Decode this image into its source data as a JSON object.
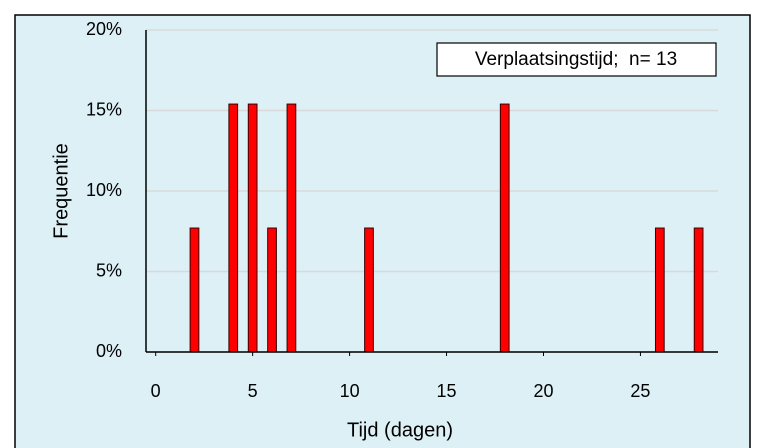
{
  "chart_data": {
    "type": "bar",
    "annotation": "Verplaatsingstijd;  n= 13",
    "x_label": "Tijd (dagen)",
    "y_label": "Frequentie",
    "x": [
      2,
      4,
      5,
      6,
      7,
      11,
      18,
      26,
      28
    ],
    "values": [
      7.7,
      15.4,
      15.4,
      7.7,
      15.4,
      7.7,
      15.4,
      7.7,
      7.7
    ],
    "color": "#ff0000",
    "xlim": [
      -0.5,
      29
    ],
    "xticks": [
      0,
      5,
      10,
      15,
      20,
      25
    ],
    "ylim": [
      0,
      20
    ],
    "yticks": [
      {
        "value": 0,
        "label": "0%"
      },
      {
        "value": 5,
        "label": "5%"
      },
      {
        "value": 10,
        "label": "10%"
      },
      {
        "value": 15,
        "label": "15%"
      },
      {
        "value": 20,
        "label": "20%"
      }
    ],
    "grid": true
  }
}
